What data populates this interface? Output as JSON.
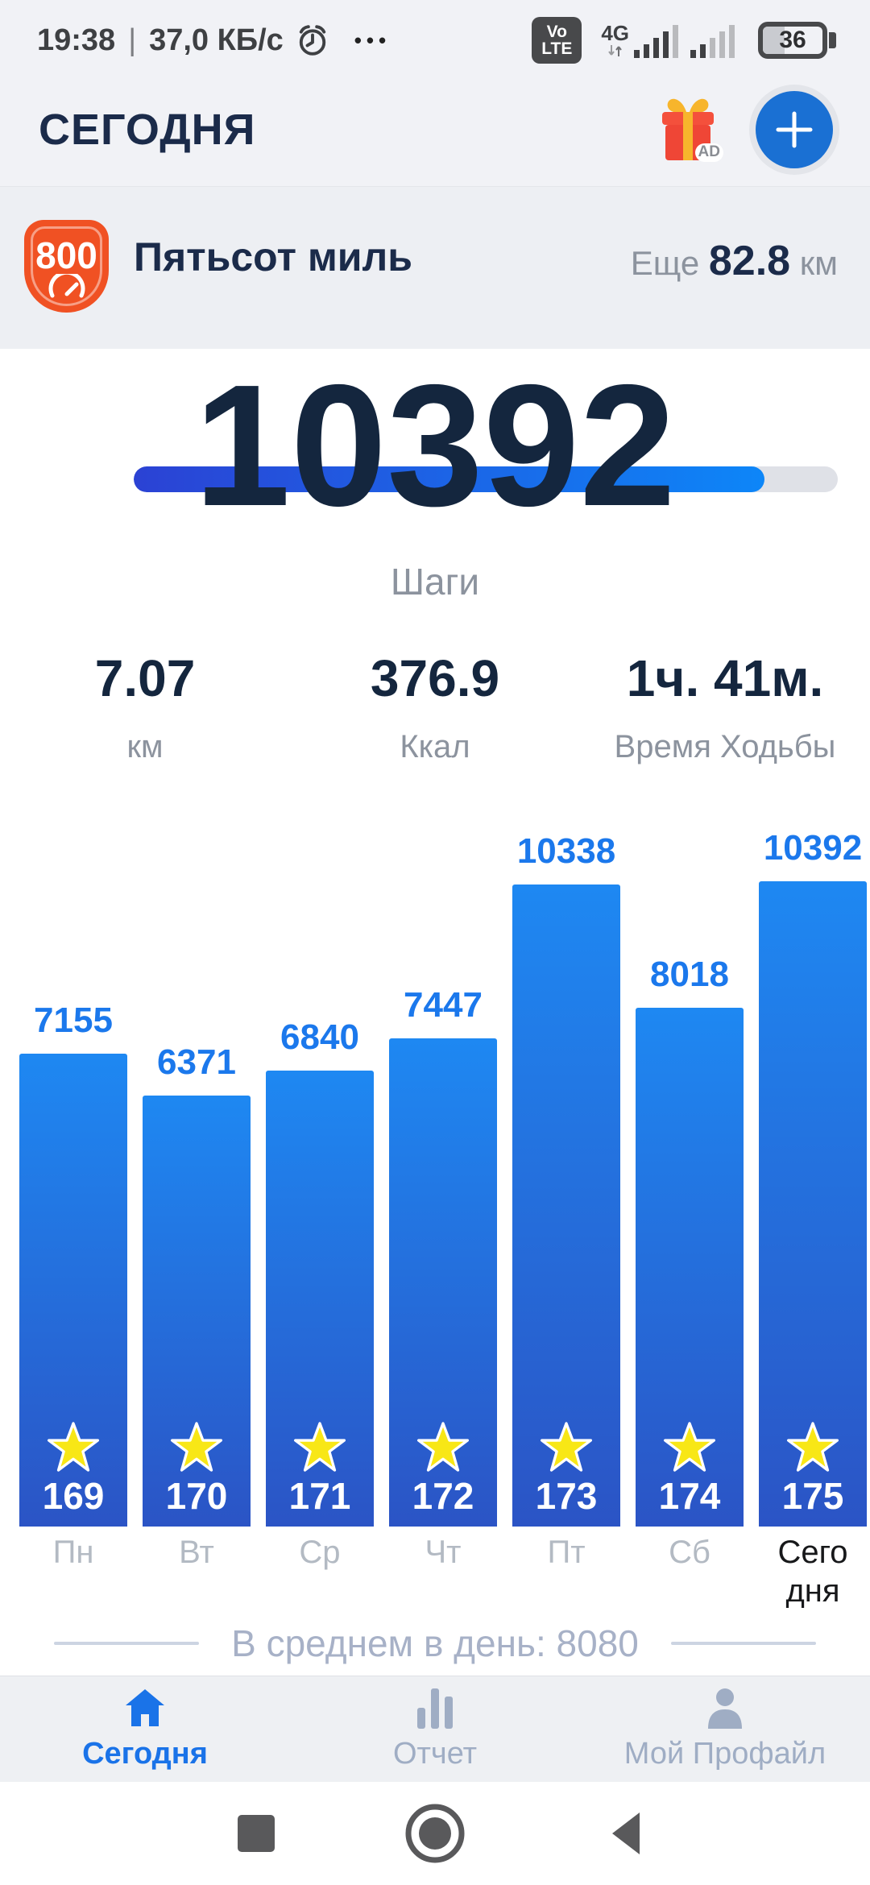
{
  "status_bar": {
    "time": "19:38",
    "separator": "|",
    "network_speed": "37,0 КБ/с",
    "menu_dots": "•••",
    "volte_line1": "Vo",
    "volte_line2": "LTE",
    "network_type": "4G",
    "battery_percent": "36",
    "battery_fill_percent": 36
  },
  "header": {
    "title": "СЕГОДНЯ",
    "ad_badge": "AD"
  },
  "challenge": {
    "badge_value": "800",
    "title": "Пятьсот миль",
    "remaining_prefix": "Еще",
    "remaining_value": "82.8",
    "remaining_unit": "км",
    "progress_percent": 89.6,
    "badge_color": "#f05123",
    "progress_color_start": "#2b42d4",
    "progress_color_end": "#0d86f8"
  },
  "today": {
    "steps_value": "10392",
    "steps_label": "Шаги",
    "stats": [
      {
        "value": "7.07",
        "label": "км"
      },
      {
        "value": "376.9",
        "label": "Ккал"
      },
      {
        "value": "1ч. 41м.",
        "label": "Время Ходьбы"
      }
    ]
  },
  "chart_data": {
    "type": "bar",
    "categories": [
      "Пн",
      "Вт",
      "Ср",
      "Чт",
      "Пт",
      "Сб",
      "Сегодня"
    ],
    "values": [
      7155,
      6371,
      6840,
      7447,
      10338,
      8018,
      10392
    ],
    "streak_numbers": [
      169,
      170,
      171,
      172,
      173,
      174,
      175
    ],
    "highlight_category_index": 6,
    "star_color": "#f8e716",
    "bar_color_top": "#1e88f2",
    "bar_color_bottom": "#2b54c5",
    "value_label_color": "#1b78ec",
    "average_label": "В среднем в день: 8080",
    "average_value": 8080,
    "ylim": [
      0,
      10392
    ],
    "grid": false,
    "legend": false
  },
  "bottom_nav": {
    "items": [
      {
        "label": "Сегодня",
        "icon": "home-icon",
        "active": true
      },
      {
        "label": "Отчет",
        "icon": "report-icon",
        "active": false
      },
      {
        "label": "Мой Профайл",
        "icon": "profile-icon",
        "active": false
      }
    ],
    "active_color": "#1a73e8",
    "inactive_color": "#9fadc4"
  }
}
